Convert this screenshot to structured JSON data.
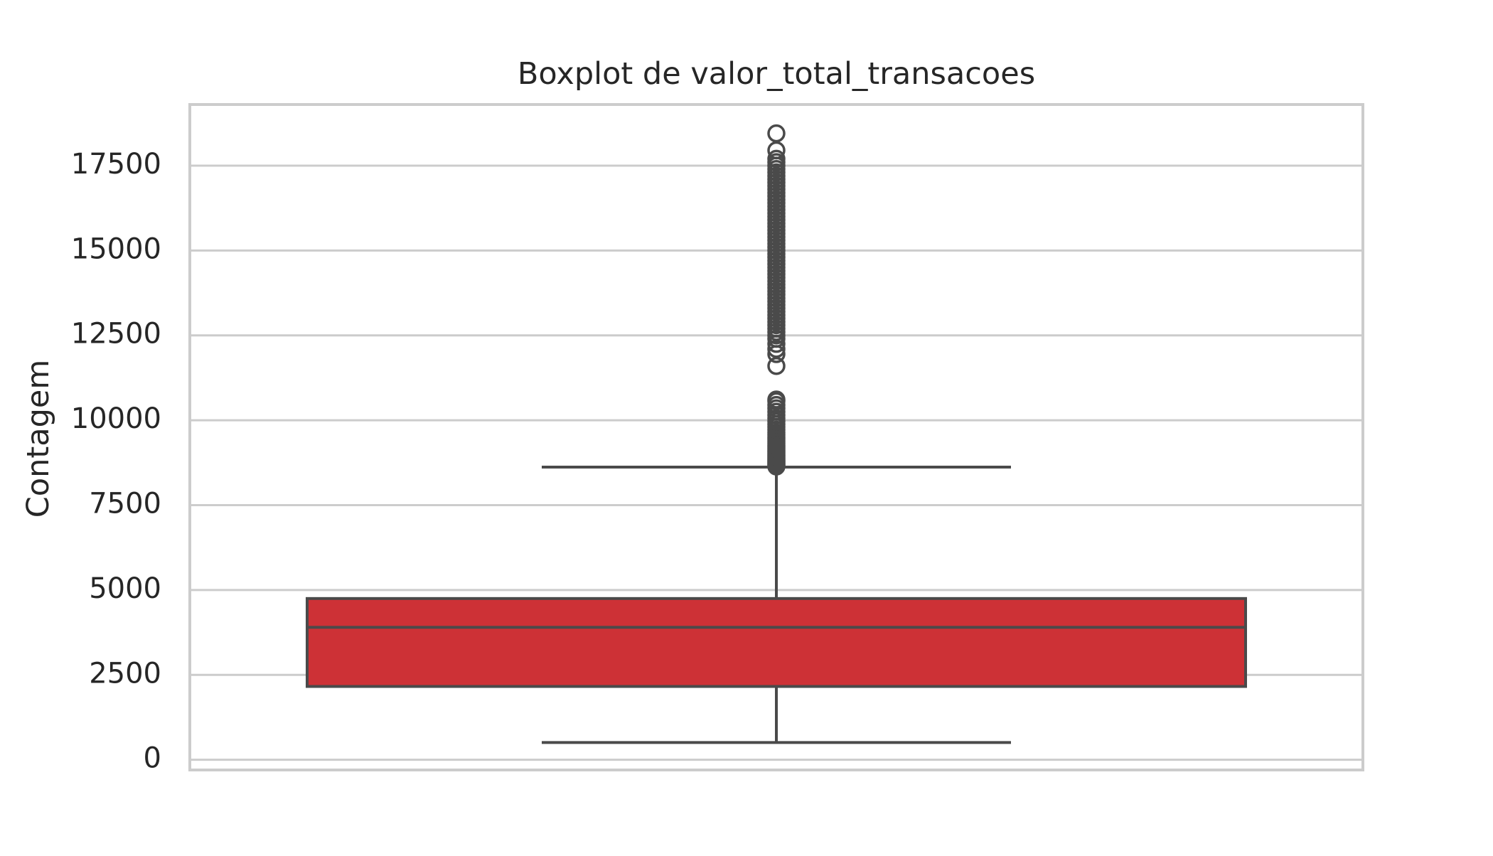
{
  "chart_data": {
    "type": "boxplot",
    "title": "Boxplot de valor_total_transacoes",
    "xlabel": "",
    "ylabel": "Contagem",
    "ylim": [
      -300,
      19300
    ],
    "yticks": [
      0,
      2500,
      5000,
      7500,
      10000,
      12500,
      15000,
      17500
    ],
    "ytick_labels": [
      "0",
      "2500",
      "5000",
      "7500",
      "10000",
      "12500",
      "15000",
      "17500"
    ],
    "grid": true,
    "box_color": "#cd3136",
    "line_color": "#4a4a4a",
    "grid_color": "#cccccc",
    "box": {
      "series": "valor_total_transacoes",
      "whisker_low": 510,
      "q1": 2160,
      "median": 3900,
      "q3": 4750,
      "whisker_high": 8620
    },
    "outliers": [
      8640,
      8660,
      8690,
      8720,
      8750,
      8780,
      8810,
      8850,
      8890,
      8930,
      8970,
      9010,
      9060,
      9110,
      9160,
      9210,
      9260,
      9320,
      9380,
      9440,
      9500,
      9570,
      9640,
      9720,
      9800,
      9880,
      9970,
      10060,
      10150,
      10250,
      10350,
      10450,
      10560,
      10610,
      11600,
      11950,
      12100,
      12250,
      12400,
      12500,
      12600,
      12700,
      12800,
      12900,
      13000,
      13100,
      13200,
      13300,
      13400,
      13500,
      13600,
      13700,
      13800,
      13900,
      14000,
      14100,
      14200,
      14300,
      14400,
      14500,
      14600,
      14700,
      14800,
      14900,
      15000,
      15100,
      15200,
      15300,
      15400,
      15500,
      15600,
      15700,
      15800,
      15900,
      16000,
      16100,
      16200,
      16300,
      16400,
      16500,
      16600,
      16700,
      16800,
      16900,
      17000,
      17100,
      17200,
      17300,
      17400,
      17500,
      17600,
      17700,
      17950,
      18450
    ]
  }
}
